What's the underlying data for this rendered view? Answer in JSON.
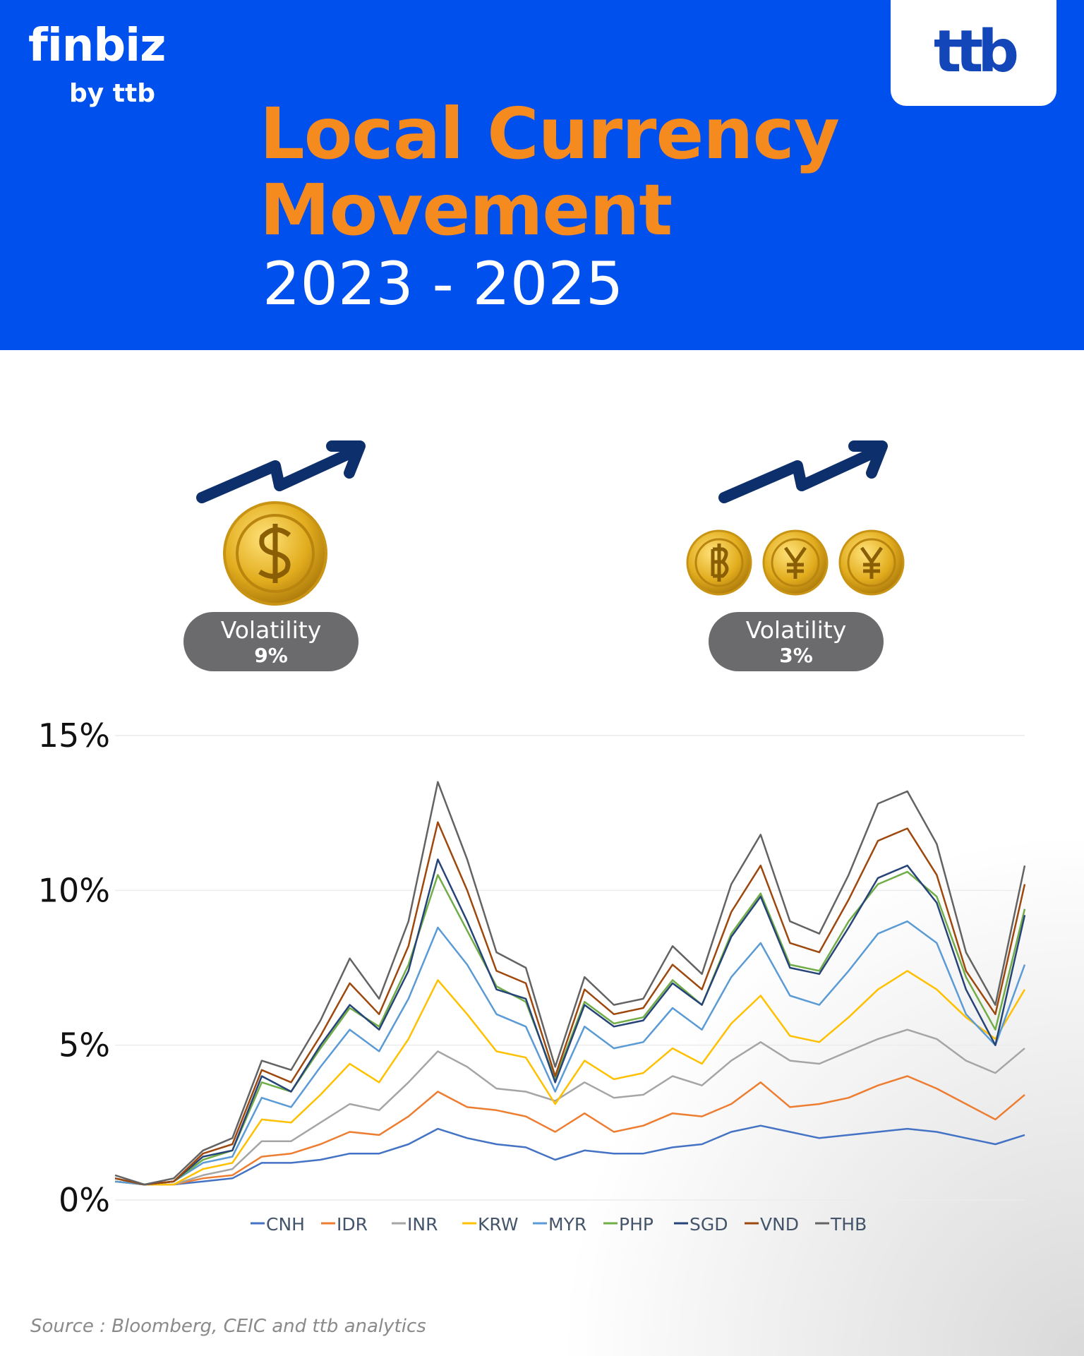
{
  "header": {
    "brand": "finbiz",
    "brand_sub": "by ttb",
    "logo": "ttb",
    "title_line1": "Local Currency",
    "title_line2": "Movement",
    "period": "2023 - 2025"
  },
  "highlights": [
    {
      "label": "Volatility",
      "value": "9%"
    },
    {
      "label": "Volatility",
      "value": "3%"
    }
  ],
  "chart_data": {
    "type": "line",
    "ylim": [
      0,
      15
    ],
    "yticks": [
      {
        "value": 0,
        "label": "0%"
      },
      {
        "value": 5,
        "label": "5%"
      },
      {
        "value": 10,
        "label": "10%"
      },
      {
        "value": 15,
        "label": "15%"
      }
    ],
    "grid": true,
    "legend": "bottom",
    "series": [
      {
        "name": "CNH",
        "color": "#4472c4",
        "values": [
          0.6,
          0.5,
          0.5,
          0.6,
          0.7,
          1.2,
          1.2,
          1.3,
          1.5,
          1.5,
          1.8,
          2.3,
          2.0,
          1.8,
          1.7,
          1.3,
          1.6,
          1.5,
          1.5,
          1.7,
          1.8,
          2.2,
          2.4,
          2.2,
          2.0,
          2.1,
          2.2,
          2.3,
          2.2,
          2.0,
          1.8,
          2.1
        ]
      },
      {
        "name": "IDR",
        "color": "#ed7d31",
        "values": [
          0.6,
          0.5,
          0.5,
          0.7,
          0.8,
          1.4,
          1.5,
          1.8,
          2.2,
          2.1,
          2.7,
          3.5,
          3.0,
          2.9,
          2.7,
          2.2,
          2.8,
          2.2,
          2.4,
          2.8,
          2.7,
          3.1,
          3.8,
          3.0,
          3.1,
          3.3,
          3.7,
          4.0,
          3.6,
          3.1,
          2.6,
          3.4
        ]
      },
      {
        "name": "INR",
        "color": "#a5a5a5",
        "values": [
          0.6,
          0.5,
          0.5,
          0.8,
          1.0,
          1.9,
          1.9,
          2.5,
          3.1,
          2.9,
          3.8,
          4.8,
          4.3,
          3.6,
          3.5,
          3.2,
          3.8,
          3.3,
          3.4,
          4.0,
          3.7,
          4.5,
          5.1,
          4.5,
          4.4,
          4.8,
          5.2,
          5.5,
          5.2,
          4.5,
          4.1,
          4.9
        ]
      },
      {
        "name": "KRW",
        "color": "#ffc000",
        "values": [
          0.6,
          0.5,
          0.5,
          1.0,
          1.2,
          2.6,
          2.5,
          3.4,
          4.4,
          3.8,
          5.2,
          7.1,
          6.0,
          4.8,
          4.6,
          3.1,
          4.5,
          3.9,
          4.1,
          4.9,
          4.4,
          5.7,
          6.6,
          5.3,
          5.1,
          5.9,
          6.8,
          7.4,
          6.8,
          5.9,
          5.2,
          6.8
        ]
      },
      {
        "name": "MYR",
        "color": "#5b9bd5",
        "values": [
          0.6,
          0.5,
          0.6,
          1.2,
          1.4,
          3.3,
          3.0,
          4.3,
          5.5,
          4.8,
          6.5,
          8.8,
          7.6,
          6.0,
          5.6,
          3.5,
          5.6,
          4.9,
          5.1,
          6.2,
          5.5,
          7.2,
          8.3,
          6.6,
          6.3,
          7.4,
          8.6,
          9.0,
          8.3,
          6.0,
          5.0,
          7.6
        ]
      },
      {
        "name": "PHP",
        "color": "#70ad47",
        "values": [
          0.7,
          0.5,
          0.6,
          1.3,
          1.6,
          3.8,
          3.5,
          4.9,
          6.2,
          5.6,
          7.6,
          10.5,
          8.7,
          6.9,
          6.4,
          3.9,
          6.4,
          5.7,
          5.9,
          7.1,
          6.3,
          8.6,
          9.9,
          7.6,
          7.4,
          9.0,
          10.2,
          10.6,
          9.8,
          7.2,
          5.5,
          9.4
        ]
      },
      {
        "name": "SGD",
        "color": "#264478",
        "values": [
          0.7,
          0.5,
          0.6,
          1.4,
          1.6,
          4.0,
          3.5,
          5.0,
          6.3,
          5.5,
          7.4,
          11.0,
          9.0,
          6.8,
          6.5,
          3.8,
          6.3,
          5.6,
          5.8,
          7.0,
          6.3,
          8.5,
          9.8,
          7.5,
          7.3,
          8.8,
          10.4,
          10.8,
          9.6,
          6.8,
          5.0,
          9.2
        ]
      },
      {
        "name": "VND",
        "color": "#9e480e",
        "values": [
          0.7,
          0.5,
          0.6,
          1.5,
          1.8,
          4.2,
          3.8,
          5.3,
          7.0,
          6.0,
          8.2,
          12.2,
          10.0,
          7.4,
          7.0,
          4.0,
          6.8,
          6.0,
          6.2,
          7.6,
          6.8,
          9.3,
          10.8,
          8.3,
          8.0,
          9.7,
          11.6,
          12.0,
          10.5,
          7.4,
          6.0,
          10.2
        ]
      },
      {
        "name": "THB",
        "color": "#636363",
        "values": [
          0.8,
          0.5,
          0.7,
          1.6,
          2.0,
          4.5,
          4.2,
          5.8,
          7.8,
          6.5,
          9.0,
          13.5,
          11.0,
          8.0,
          7.5,
          4.3,
          7.2,
          6.3,
          6.5,
          8.2,
          7.3,
          10.2,
          11.8,
          9.0,
          8.6,
          10.5,
          12.8,
          13.2,
          11.5,
          8.0,
          6.3,
          10.8
        ]
      }
    ]
  },
  "source": "Source : Bloomberg, CEIC and ttb analytics"
}
